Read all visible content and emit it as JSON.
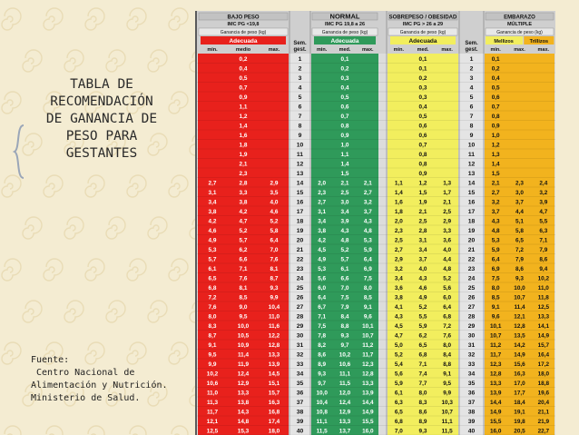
{
  "title_block": {
    "lines": [
      "TABLA DE",
      "RECOMENDACIÓN",
      "DE GANANCIA DE",
      "PESO PARA",
      "GESTANTES"
    ]
  },
  "source": {
    "label": "Fuente:",
    "lines": [
      " Centro Nacional de",
      "Alimentación y Nutrición.",
      "Ministerio de Salud."
    ]
  },
  "colors": {
    "bajo_peso": "#e8211c",
    "normal": "#2f9a5a",
    "sobrepeso": "#f2ee5e",
    "embarazo": "#f2b31e",
    "header_bg": "#b8b8b8",
    "page_bg": "#f4ecd2"
  },
  "table": {
    "groups": [
      {
        "title": "BAJO PESO",
        "subtitle": "IMC PG <19,8",
        "gain_label": "Ganancia de peso (kg)",
        "band_label": "Adecuada",
        "cols": [
          "min.",
          "medio",
          "max."
        ]
      },
      {
        "title": "NORMAL",
        "subtitle": "IMC PG 19,8 a 26",
        "gain_label": "Ganancia de peso (kg)",
        "band_label": "Adecuada",
        "cols": [
          "min.",
          "med.",
          "max."
        ]
      },
      {
        "title": "SOBREPESO / OBESIDAD",
        "subtitle": "IMC PG > 26 a 29",
        "gain_label": "Ganancia de peso (kg)",
        "band_label": "Adecuada",
        "cols": [
          "min.",
          "med.",
          "max."
        ]
      },
      {
        "title": "EMBARAZO",
        "subtitle": "MÚLTIPLE",
        "gain_label": "Ganancia de peso (kg)",
        "band_label": "",
        "cols": [
          "Mellizos",
          "Trillizos"
        ],
        "sub_cols": [
          "min.",
          "max.",
          "max."
        ]
      }
    ],
    "sem_label": [
      "Sem.",
      "gest."
    ],
    "weeks": [
      1,
      2,
      3,
      4,
      5,
      6,
      7,
      8,
      9,
      10,
      11,
      12,
      13,
      14,
      15,
      16,
      17,
      18,
      19,
      20,
      21,
      22,
      23,
      24,
      25,
      26,
      27,
      28,
      29,
      30,
      31,
      32,
      33,
      34,
      35,
      36,
      37,
      38,
      39,
      40
    ],
    "bajo_peso": [
      [
        "",
        "0,2",
        ""
      ],
      [
        "",
        "0,4",
        ""
      ],
      [
        "",
        "0,5",
        ""
      ],
      [
        "",
        "0,7",
        ""
      ],
      [
        "",
        "0,9",
        ""
      ],
      [
        "",
        "1,1",
        ""
      ],
      [
        "",
        "1,2",
        ""
      ],
      [
        "",
        "1,4",
        ""
      ],
      [
        "",
        "1,6",
        ""
      ],
      [
        "",
        "1,8",
        ""
      ],
      [
        "",
        "1,9",
        ""
      ],
      [
        "",
        "2,1",
        ""
      ],
      [
        "",
        "2,3",
        ""
      ],
      [
        "2,7",
        "2,8",
        "2,9"
      ],
      [
        "3,1",
        "3,3",
        "3,5"
      ],
      [
        "3,4",
        "3,8",
        "4,0"
      ],
      [
        "3,8",
        "4,2",
        "4,6"
      ],
      [
        "4,2",
        "4,7",
        "5,2"
      ],
      [
        "4,6",
        "5,2",
        "5,8"
      ],
      [
        "4,9",
        "5,7",
        "6,4"
      ],
      [
        "5,3",
        "6,2",
        "7,0"
      ],
      [
        "5,7",
        "6,6",
        "7,6"
      ],
      [
        "6,1",
        "7,1",
        "8,1"
      ],
      [
        "6,5",
        "7,6",
        "8,7"
      ],
      [
        "6,8",
        "8,1",
        "9,3"
      ],
      [
        "7,2",
        "8,5",
        "9,9"
      ],
      [
        "7,6",
        "9,0",
        "10,4"
      ],
      [
        "8,0",
        "9,5",
        "11,0"
      ],
      [
        "8,3",
        "10,0",
        "11,6"
      ],
      [
        "8,7",
        "10,5",
        "12,2"
      ],
      [
        "9,1",
        "10,9",
        "12,8"
      ],
      [
        "9,5",
        "11,4",
        "13,3"
      ],
      [
        "9,9",
        "11,9",
        "13,9"
      ],
      [
        "10,2",
        "12,4",
        "14,5"
      ],
      [
        "10,6",
        "12,9",
        "15,1"
      ],
      [
        "11,0",
        "13,3",
        "15,7"
      ],
      [
        "11,3",
        "13,8",
        "16,3"
      ],
      [
        "11,7",
        "14,3",
        "16,8"
      ],
      [
        "12,1",
        "14,8",
        "17,4"
      ],
      [
        "12,5",
        "15,3",
        "18,0"
      ]
    ],
    "normal": [
      [
        "",
        "0,1",
        ""
      ],
      [
        "",
        "0,2",
        ""
      ],
      [
        "",
        "0,3",
        ""
      ],
      [
        "",
        "0,4",
        ""
      ],
      [
        "",
        "0,5",
        ""
      ],
      [
        "",
        "0,6",
        ""
      ],
      [
        "",
        "0,7",
        ""
      ],
      [
        "",
        "0,8",
        ""
      ],
      [
        "",
        "0,9",
        ""
      ],
      [
        "",
        "1,0",
        ""
      ],
      [
        "",
        "1,1",
        ""
      ],
      [
        "",
        "1,4",
        ""
      ],
      [
        "",
        "1,5",
        ""
      ],
      [
        "2,0",
        "2,1",
        "2,1"
      ],
      [
        "2,3",
        "2,5",
        "2,7"
      ],
      [
        "2,7",
        "3,0",
        "3,2"
      ],
      [
        "3,1",
        "3,4",
        "3,7"
      ],
      [
        "3,4",
        "3,9",
        "4,3"
      ],
      [
        "3,8",
        "4,3",
        "4,8"
      ],
      [
        "4,2",
        "4,8",
        "5,3"
      ],
      [
        "4,5",
        "5,2",
        "5,9"
      ],
      [
        "4,9",
        "5,7",
        "6,4"
      ],
      [
        "5,3",
        "6,1",
        "6,9"
      ],
      [
        "5,6",
        "6,6",
        "7,5"
      ],
      [
        "6,0",
        "7,0",
        "8,0"
      ],
      [
        "6,4",
        "7,5",
        "8,5"
      ],
      [
        "6,7",
        "7,9",
        "9,1"
      ],
      [
        "7,1",
        "8,4",
        "9,6"
      ],
      [
        "7,5",
        "8,8",
        "10,1"
      ],
      [
        "7,8",
        "9,3",
        "10,7"
      ],
      [
        "8,2",
        "9,7",
        "11,2"
      ],
      [
        "8,6",
        "10,2",
        "11,7"
      ],
      [
        "8,9",
        "10,6",
        "12,3"
      ],
      [
        "9,3",
        "11,1",
        "12,8"
      ],
      [
        "9,7",
        "11,5",
        "13,3"
      ],
      [
        "10,0",
        "12,0",
        "13,9"
      ],
      [
        "10,4",
        "12,4",
        "14,4"
      ],
      [
        "10,8",
        "12,9",
        "14,9"
      ],
      [
        "11,1",
        "13,3",
        "15,5"
      ],
      [
        "11,5",
        "13,7",
        "16,0"
      ]
    ],
    "sobrepeso": [
      [
        "",
        "0,1",
        ""
      ],
      [
        "",
        "0,1",
        ""
      ],
      [
        "",
        "0,2",
        ""
      ],
      [
        "",
        "0,3",
        ""
      ],
      [
        "",
        "0,3",
        ""
      ],
      [
        "",
        "0,4",
        ""
      ],
      [
        "",
        "0,5",
        ""
      ],
      [
        "",
        "0,6",
        ""
      ],
      [
        "",
        "0,6",
        ""
      ],
      [
        "",
        "0,7",
        ""
      ],
      [
        "",
        "0,8",
        ""
      ],
      [
        "",
        "0,8",
        ""
      ],
      [
        "",
        "0,9",
        ""
      ],
      [
        "1,1",
        "1,2",
        "1,3"
      ],
      [
        "1,4",
        "1,5",
        "1,7"
      ],
      [
        "1,6",
        "1,9",
        "2,1"
      ],
      [
        "1,8",
        "2,1",
        "2,5"
      ],
      [
        "2,0",
        "2,5",
        "2,9"
      ],
      [
        "2,3",
        "2,8",
        "3,3"
      ],
      [
        "2,5",
        "3,1",
        "3,6"
      ],
      [
        "2,7",
        "3,4",
        "4,0"
      ],
      [
        "2,9",
        "3,7",
        "4,4"
      ],
      [
        "3,2",
        "4,0",
        "4,8"
      ],
      [
        "3,4",
        "4,3",
        "5,2"
      ],
      [
        "3,6",
        "4,6",
        "5,6"
      ],
      [
        "3,8",
        "4,9",
        "6,0"
      ],
      [
        "4,1",
        "5,2",
        "6,4"
      ],
      [
        "4,3",
        "5,5",
        "6,8"
      ],
      [
        "4,5",
        "5,9",
        "7,2"
      ],
      [
        "4,7",
        "6,2",
        "7,6"
      ],
      [
        "5,0",
        "6,5",
        "8,0"
      ],
      [
        "5,2",
        "6,8",
        "8,4"
      ],
      [
        "5,4",
        "7,1",
        "8,8"
      ],
      [
        "5,6",
        "7,4",
        "9,1"
      ],
      [
        "5,9",
        "7,7",
        "9,5"
      ],
      [
        "6,1",
        "8,0",
        "9,9"
      ],
      [
        "6,3",
        "8,3",
        "10,3"
      ],
      [
        "6,5",
        "8,6",
        "10,7"
      ],
      [
        "6,8",
        "8,9",
        "11,1"
      ],
      [
        "7,0",
        "9,3",
        "11,5"
      ]
    ],
    "embarazo": [
      [
        "0,1",
        "",
        ""
      ],
      [
        "0,2",
        "",
        ""
      ],
      [
        "0,4",
        "",
        ""
      ],
      [
        "0,5",
        "",
        ""
      ],
      [
        "0,6",
        "",
        ""
      ],
      [
        "0,7",
        "",
        ""
      ],
      [
        "0,8",
        "",
        ""
      ],
      [
        "0,9",
        "",
        ""
      ],
      [
        "1,0",
        "",
        ""
      ],
      [
        "1,2",
        "",
        ""
      ],
      [
        "1,3",
        "",
        ""
      ],
      [
        "1,4",
        "",
        ""
      ],
      [
        "1,5",
        "",
        ""
      ],
      [
        "2,1",
        "2,3",
        "2,4"
      ],
      [
        "2,7",
        "3,0",
        "3,2"
      ],
      [
        "3,2",
        "3,7",
        "3,9"
      ],
      [
        "3,7",
        "4,4",
        "4,7"
      ],
      [
        "4,3",
        "5,1",
        "5,5"
      ],
      [
        "4,8",
        "5,8",
        "6,3"
      ],
      [
        "5,3",
        "6,5",
        "7,1"
      ],
      [
        "5,9",
        "7,2",
        "7,9"
      ],
      [
        "6,4",
        "7,9",
        "8,6"
      ],
      [
        "6,9",
        "8,6",
        "9,4"
      ],
      [
        "7,5",
        "9,3",
        "10,2"
      ],
      [
        "8,0",
        "10,0",
        "11,0"
      ],
      [
        "8,5",
        "10,7",
        "11,8"
      ],
      [
        "9,1",
        "11,4",
        "12,5"
      ],
      [
        "9,6",
        "12,1",
        "13,3"
      ],
      [
        "10,1",
        "12,8",
        "14,1"
      ],
      [
        "10,7",
        "13,5",
        "14,9"
      ],
      [
        "11,2",
        "14,2",
        "15,7"
      ],
      [
        "11,7",
        "14,9",
        "16,4"
      ],
      [
        "12,3",
        "15,6",
        "17,2"
      ],
      [
        "12,8",
        "16,3",
        "18,0"
      ],
      [
        "13,3",
        "17,0",
        "18,8"
      ],
      [
        "13,9",
        "17,7",
        "19,6"
      ],
      [
        "14,4",
        "18,4",
        "20,4"
      ],
      [
        "14,9",
        "19,1",
        "21,1"
      ],
      [
        "15,5",
        "19,8",
        "21,9"
      ],
      [
        "16,0",
        "20,5",
        "22,7"
      ]
    ]
  }
}
